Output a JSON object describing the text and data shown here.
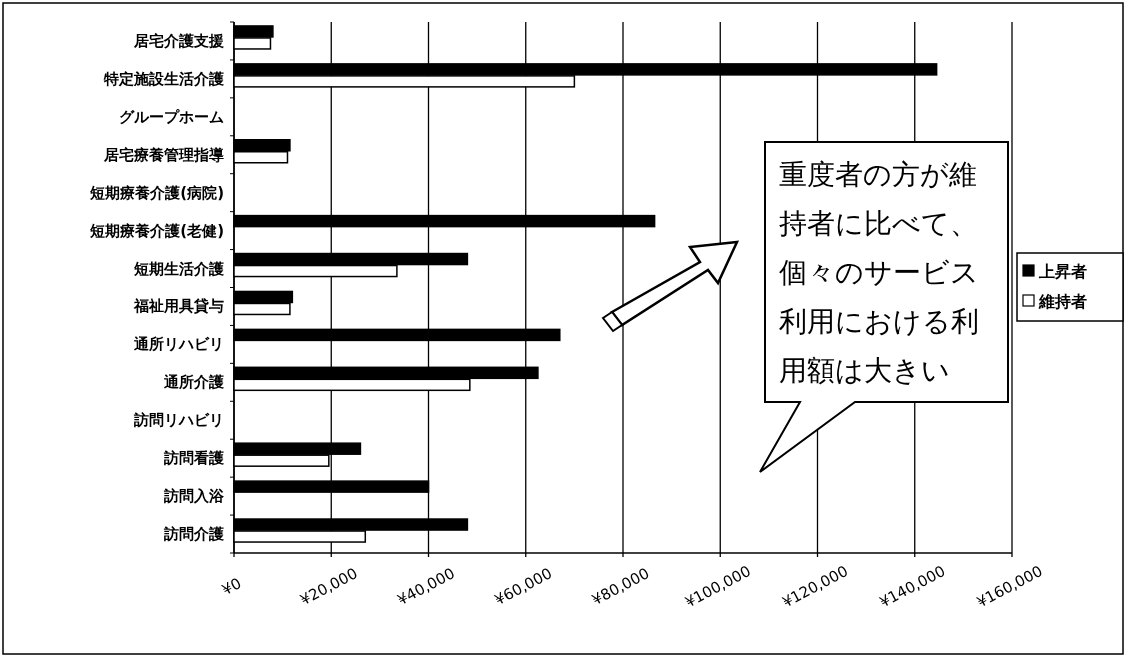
{
  "chart_data": {
    "type": "bar",
    "orientation": "horizontal",
    "categories": [
      "居宅介護支援",
      "特定施設生活介護",
      "グループホーム",
      "居宅療養管理指導",
      "短期療養介護(病院)",
      "短期療養介護(老健)",
      "短期生活介護",
      "福祉用具貸与",
      "通所リハビリ",
      "通所介護",
      "訪問リハビリ",
      "訪問看護",
      "訪問入浴",
      "訪問介護"
    ],
    "series": [
      {
        "name": "上昇者",
        "color": "#000000",
        "values": [
          8000,
          144500,
          0,
          11500,
          0,
          86500,
          48000,
          12000,
          67000,
          62500,
          0,
          26000,
          40000,
          48000
        ]
      },
      {
        "name": "維持者",
        "color": "#ffffff",
        "values": [
          7500,
          70000,
          0,
          11000,
          0,
          0,
          33500,
          11500,
          0,
          48500,
          0,
          19500,
          0,
          27000
        ]
      }
    ],
    "xlim": [
      0,
      160000
    ],
    "xticks": [
      {
        "value": 0,
        "label": "¥0"
      },
      {
        "value": 20000,
        "label": "¥20,000"
      },
      {
        "value": 40000,
        "label": "¥40,000"
      },
      {
        "value": 60000,
        "label": "¥60,000"
      },
      {
        "value": 80000,
        "label": "¥80,000"
      },
      {
        "value": 100000,
        "label": "¥100,000"
      },
      {
        "value": 120000,
        "label": "¥120,000"
      },
      {
        "value": 140000,
        "label": "¥140,000"
      },
      {
        "value": 160000,
        "label": "¥160,000"
      }
    ],
    "grid": "x",
    "legend": "right",
    "annotations": [
      "重度者の方が維持者に比べて、個々のサービス利用における利用額は大きい"
    ]
  }
}
